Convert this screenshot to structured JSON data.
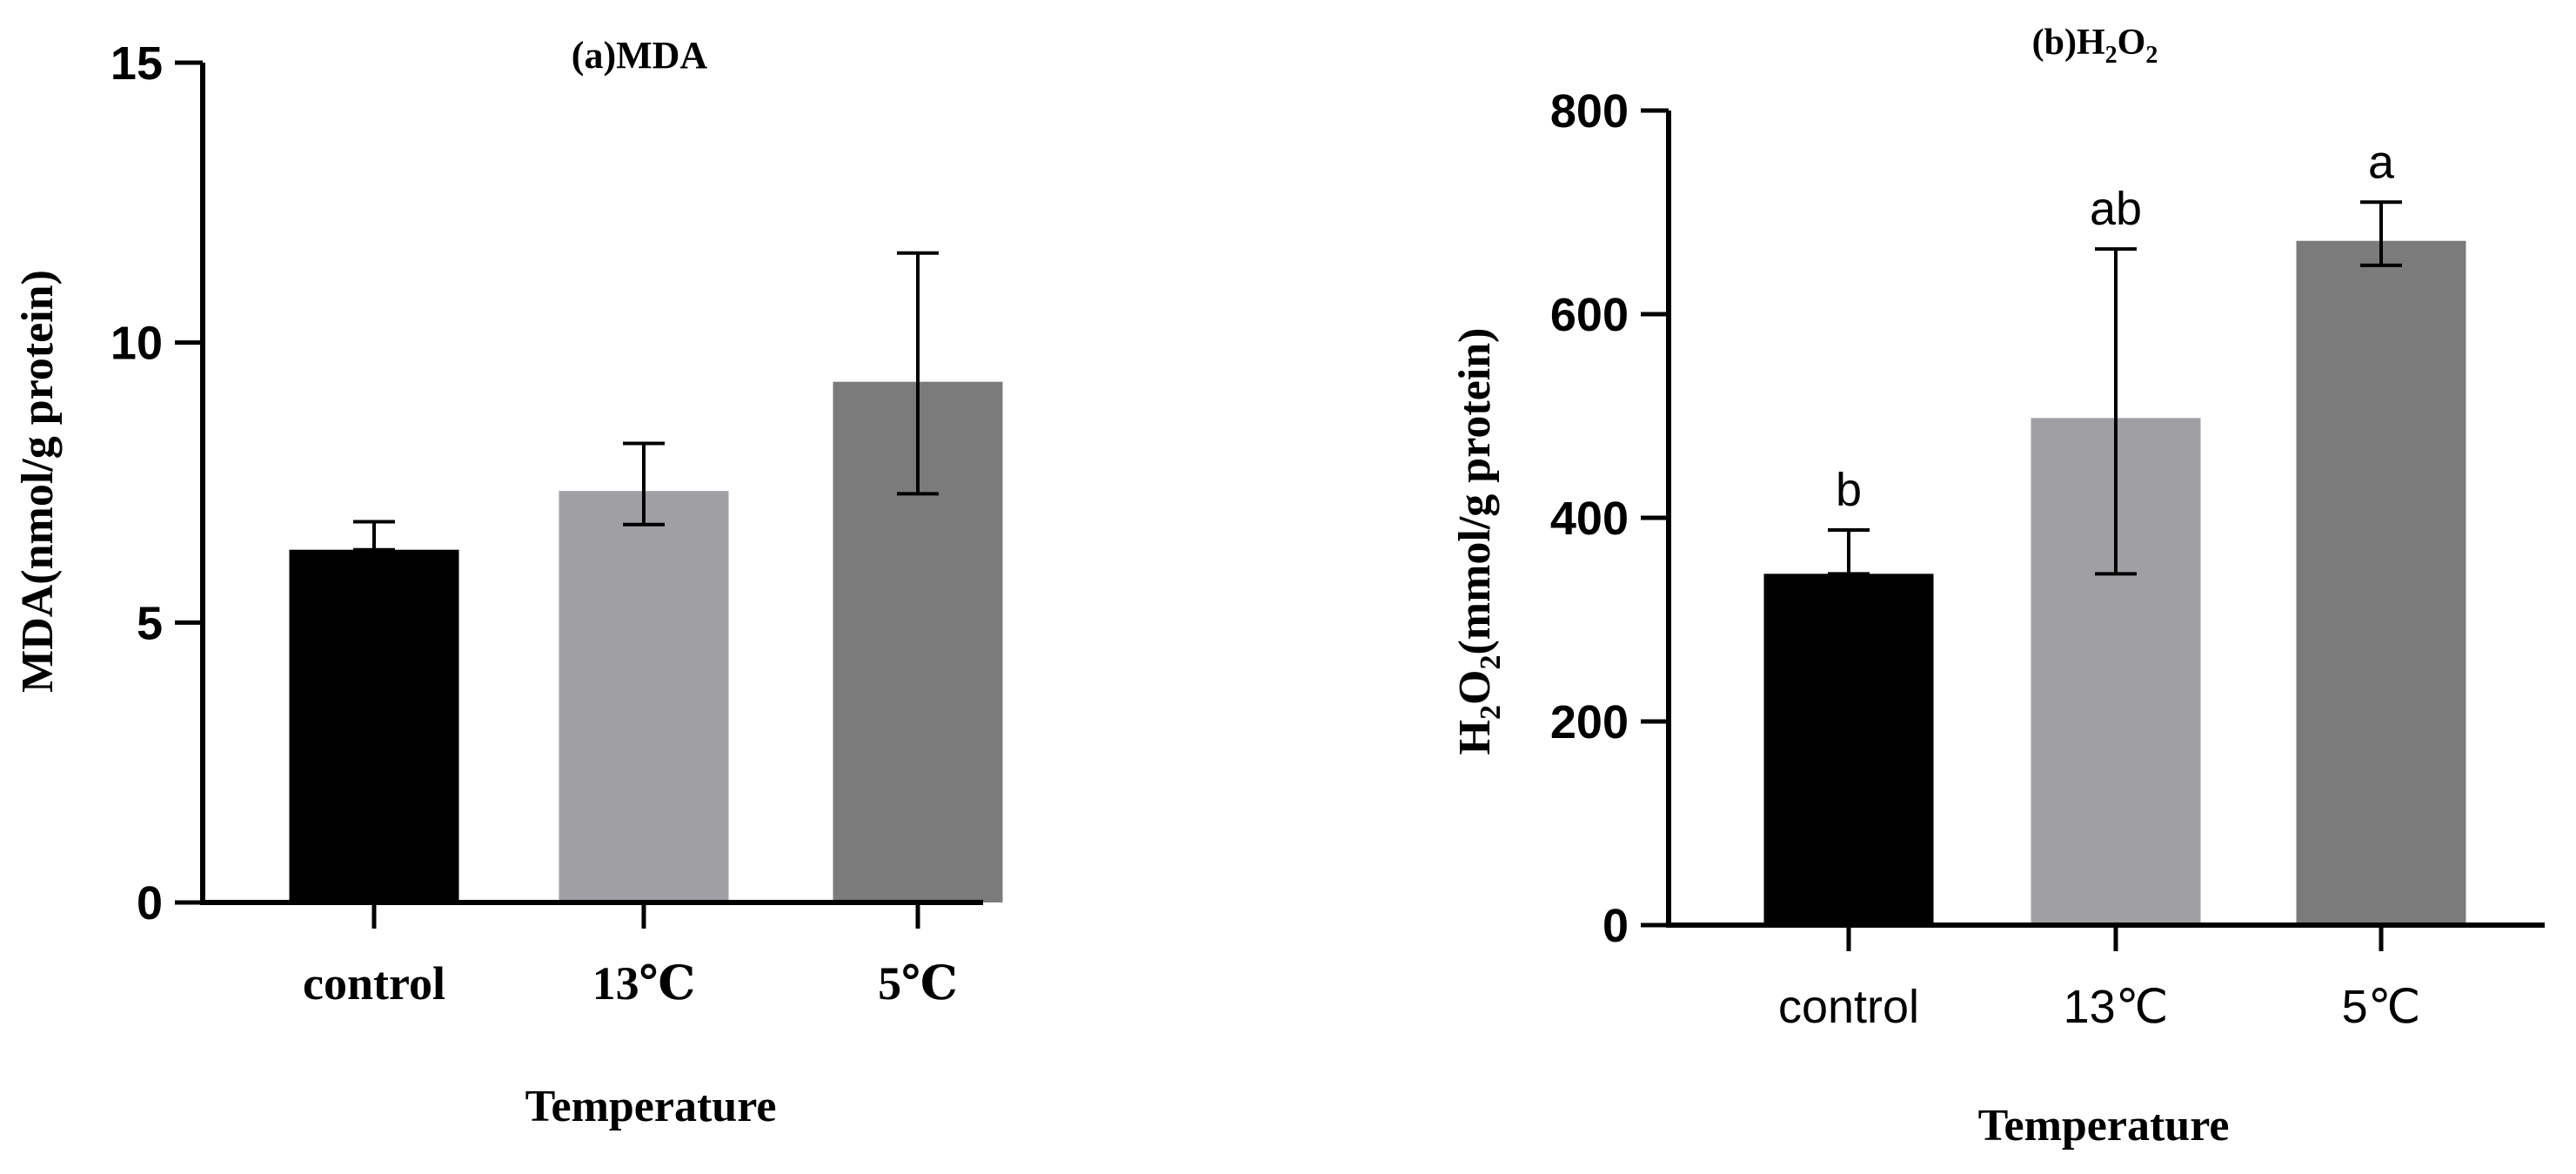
{
  "chart_data": [
    {
      "type": "bar",
      "title": "(a)MDA",
      "xlabel": "Temperature",
      "ylabel": "MDA(nmol/g protein)",
      "categories": [
        "control",
        "13℃",
        "5℃"
      ],
      "values": [
        6.3,
        7.35,
        9.3
      ],
      "error_upper": [
        6.8,
        8.2,
        11.6
      ],
      "error_lower": [
        6.3,
        6.75,
        7.3
      ],
      "ylim": [
        0,
        15
      ],
      "yticks": [
        0,
        5,
        10,
        15
      ],
      "ytick_labels": [
        "0",
        "5",
        "10",
        "15"
      ],
      "significance_labels": [
        "",
        "",
        ""
      ],
      "colors": [
        "#000000",
        "#a0a0a4",
        "#7b7b7b"
      ],
      "grid": false,
      "legend": "none"
    },
    {
      "type": "bar",
      "title": "(b)H2O2",
      "xlabel": "Temperature",
      "ylabel": "H2O2(mmol/g protein)",
      "categories": [
        "control",
        "13℃",
        "5℃"
      ],
      "values": [
        345,
        498,
        672
      ],
      "error_upper": [
        388,
        664,
        710
      ],
      "error_lower": [
        345,
        345,
        648
      ],
      "ylim": [
        0,
        800
      ],
      "yticks": [
        0,
        200,
        400,
        600,
        800
      ],
      "ytick_labels": [
        "0",
        "200",
        "400",
        "600",
        "800"
      ],
      "significance_labels": [
        "b",
        "ab",
        "a"
      ],
      "colors": [
        "#000000",
        "#a0a0a4",
        "#7b7b7b"
      ],
      "grid": false,
      "legend": "none"
    }
  ]
}
